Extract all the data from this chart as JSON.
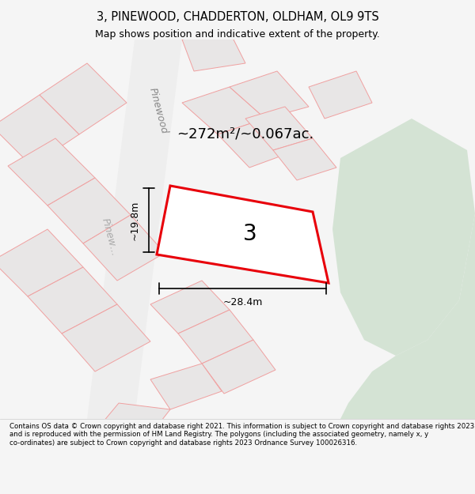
{
  "title": "3, PINEWOOD, CHADDERTON, OLDHAM, OL9 9TS",
  "subtitle": "Map shows position and indicative extent of the property.",
  "area_text": "~272m²/~0.067ac.",
  "label_number": "3",
  "dim_width": "~28.4m",
  "dim_height": "~19.8m",
  "street_label_1": "Pinewood",
  "street_label_2": "Pinew…",
  "footer": "Contains OS data © Crown copyright and database right 2021. This information is subject to Crown copyright and database rights 2023 and is reproduced with the permission of HM Land Registry. The polygons (including the associated geometry, namely x, y co-ordinates) are subject to Crown copyright and database rights 2023 Ordnance Survey 100026316.",
  "bg_color": "#f5f5f5",
  "map_bg": "#f0eeee",
  "plot_color": "#ffffff",
  "plot_border_color": "#e8000a",
  "neighbor_color": "#e8e6e6",
  "neighbor_border": "#f0a0a0",
  "road_color": "#f8c8c8",
  "green_area": "#d4e3d4",
  "figure_width": 6.0,
  "figure_height": 6.25
}
